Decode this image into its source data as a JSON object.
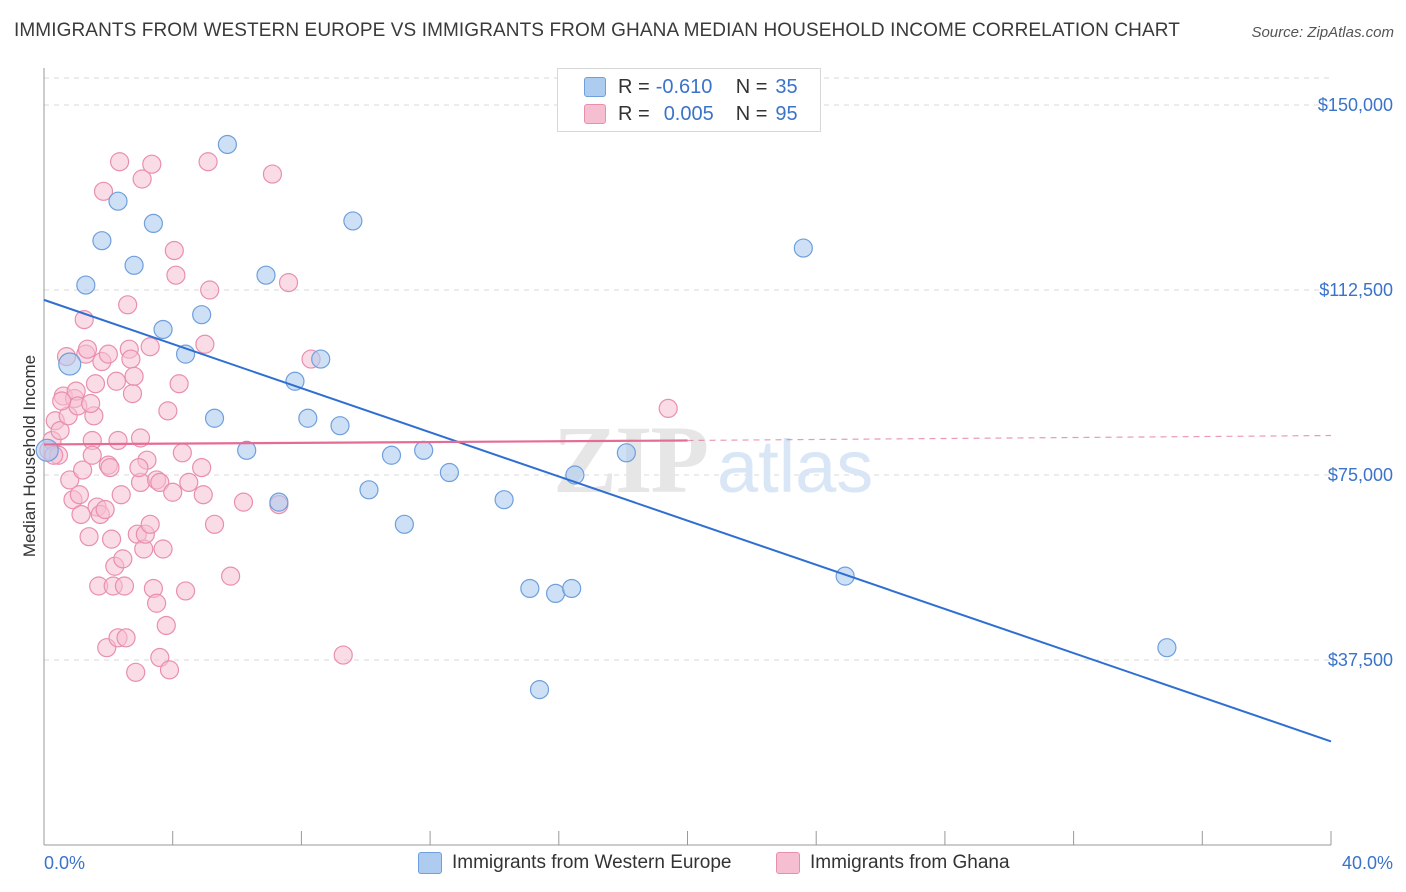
{
  "header": {
    "title": "IMMIGRANTS FROM WESTERN EUROPE VS IMMIGRANTS FROM GHANA MEDIAN HOUSEHOLD INCOME CORRELATION CHART",
    "source": "Source: ZipAtlas.com"
  },
  "legend": {
    "rows": [
      {
        "r_label": "R =",
        "r_value": "-0.610",
        "n_label": "N =",
        "n_value": "35"
      },
      {
        "r_label": "R =",
        "r_value": "0.005",
        "n_label": "N =",
        "n_value": "95"
      }
    ]
  },
  "bottom_legend": {
    "series1": "Immigrants from Western Europe",
    "series2": "Immigrants from Ghana"
  },
  "watermark": "ZIPatlas",
  "colors": {
    "blue_fill": "#aecbf0",
    "blue_stroke": "#6f9fdc",
    "blue_line": "#2f6fd1",
    "pink_fill": "#f6bfd1",
    "pink_stroke": "#e98fae",
    "pink_line": "#e46d96",
    "tick_text": "#3a73c9",
    "grid": "#d9d9d9"
  },
  "chart_data": {
    "type": "scatter",
    "title": "IMMIGRANTS FROM WESTERN EUROPE VS IMMIGRANTS FROM GHANA MEDIAN HOUSEHOLD INCOME CORRELATION CHART",
    "xlabel": "",
    "ylabel": "Median Household Income",
    "xlim": [
      0,
      40
    ],
    "ylim": [
      0,
      157500
    ],
    "x_tick_labels": [
      "0.0%",
      "40.0%"
    ],
    "y_ticks": [
      37500,
      75000,
      112500,
      150000
    ],
    "y_tick_labels": [
      "$37,500",
      "$75,000",
      "$112,500",
      "$150,000"
    ],
    "grid": "horizontal dashed",
    "legend_placement": "top-center",
    "series": [
      {
        "name": "Immigrants from Western Europe",
        "color": "#aecbf0",
        "r": -0.61,
        "n": 35,
        "trend": {
          "x": [
            0,
            40
          ],
          "y": [
            110500,
            21000
          ]
        },
        "points": [
          [
            0.1,
            80000
          ],
          [
            0.8,
            97500
          ],
          [
            1.3,
            113500
          ],
          [
            1.8,
            122500
          ],
          [
            2.3,
            130500
          ],
          [
            2.8,
            117500
          ],
          [
            3.4,
            126000
          ],
          [
            3.7,
            104500
          ],
          [
            4.4,
            99500
          ],
          [
            4.9,
            107500
          ],
          [
            5.3,
            86500
          ],
          [
            5.7,
            142000
          ],
          [
            6.3,
            80000
          ],
          [
            6.9,
            115500
          ],
          [
            7.3,
            69500
          ],
          [
            7.8,
            94000
          ],
          [
            8.2,
            86500
          ],
          [
            8.6,
            98500
          ],
          [
            9.2,
            85000
          ],
          [
            9.6,
            126500
          ],
          [
            10.1,
            72000
          ],
          [
            10.8,
            79000
          ],
          [
            11.2,
            65000
          ],
          [
            11.8,
            80000
          ],
          [
            12.6,
            75500
          ],
          [
            14.3,
            70000
          ],
          [
            15.1,
            52000
          ],
          [
            15.4,
            31500
          ],
          [
            15.9,
            51000
          ],
          [
            16.4,
            52000
          ],
          [
            16.5,
            75000
          ],
          [
            18.1,
            79500
          ],
          [
            23.6,
            121000
          ],
          [
            24.9,
            54500
          ],
          [
            34.9,
            40000
          ]
        ]
      },
      {
        "name": "Immigrants from Ghana",
        "color": "#f6bfd1",
        "r": 0.005,
        "n": 95,
        "trend": {
          "x": [
            0,
            20
          ],
          "y": [
            81200,
            82000
          ]
        },
        "trend_dashed_extension": {
          "x": [
            20,
            40
          ],
          "y": [
            82000,
            83000
          ]
        },
        "points": [
          [
            0.15,
            80000
          ],
          [
            0.25,
            82000
          ],
          [
            0.35,
            86000
          ],
          [
            0.45,
            79000
          ],
          [
            0.5,
            84000
          ],
          [
            0.6,
            91000
          ],
          [
            0.7,
            99000
          ],
          [
            0.75,
            87000
          ],
          [
            0.8,
            74000
          ],
          [
            0.9,
            70000
          ],
          [
            0.95,
            90500
          ],
          [
            1.0,
            92000
          ],
          [
            1.05,
            89000
          ],
          [
            1.1,
            71000
          ],
          [
            1.2,
            76000
          ],
          [
            1.25,
            106500
          ],
          [
            1.3,
            99500
          ],
          [
            1.35,
            100500
          ],
          [
            1.4,
            62500
          ],
          [
            1.5,
            82000
          ],
          [
            1.5,
            79000
          ],
          [
            1.55,
            87000
          ],
          [
            1.6,
            93500
          ],
          [
            1.65,
            68500
          ],
          [
            1.7,
            52500
          ],
          [
            1.75,
            67000
          ],
          [
            1.8,
            98000
          ],
          [
            1.85,
            132500
          ],
          [
            1.9,
            68000
          ],
          [
            1.95,
            40000
          ],
          [
            2.0,
            99500
          ],
          [
            2.0,
            77000
          ],
          [
            2.05,
            76500
          ],
          [
            2.1,
            62000
          ],
          [
            2.15,
            52500
          ],
          [
            2.2,
            56500
          ],
          [
            2.25,
            94000
          ],
          [
            2.3,
            82000
          ],
          [
            2.3,
            42000
          ],
          [
            2.35,
            138500
          ],
          [
            2.4,
            71000
          ],
          [
            2.45,
            58000
          ],
          [
            2.5,
            52500
          ],
          [
            2.55,
            42000
          ],
          [
            2.6,
            109500
          ],
          [
            2.65,
            100500
          ],
          [
            2.7,
            98500
          ],
          [
            2.75,
            91500
          ],
          [
            2.8,
            95000
          ],
          [
            2.85,
            35000
          ],
          [
            2.9,
            63000
          ],
          [
            3.0,
            82500
          ],
          [
            3.0,
            73500
          ],
          [
            3.05,
            135000
          ],
          [
            3.1,
            60000
          ],
          [
            3.15,
            63000
          ],
          [
            3.2,
            78000
          ],
          [
            3.3,
            65000
          ],
          [
            3.3,
            101000
          ],
          [
            3.35,
            138000
          ],
          [
            3.4,
            52000
          ],
          [
            3.5,
            49000
          ],
          [
            3.5,
            74000
          ],
          [
            3.6,
            38000
          ],
          [
            3.6,
            73500
          ],
          [
            3.7,
            60000
          ],
          [
            3.8,
            44500
          ],
          [
            3.85,
            88000
          ],
          [
            3.9,
            35500
          ],
          [
            4.0,
            71500
          ],
          [
            4.05,
            120500
          ],
          [
            4.1,
            115500
          ],
          [
            4.2,
            93500
          ],
          [
            4.3,
            79500
          ],
          [
            4.4,
            51500
          ],
          [
            4.5,
            73500
          ],
          [
            4.9,
            76500
          ],
          [
            4.95,
            71000
          ],
          [
            5.0,
            101500
          ],
          [
            5.1,
            138500
          ],
          [
            5.15,
            112500
          ],
          [
            5.3,
            65000
          ],
          [
            5.8,
            54500
          ],
          [
            6.2,
            69500
          ],
          [
            7.1,
            136000
          ],
          [
            7.3,
            69000
          ],
          [
            7.6,
            114000
          ],
          [
            8.3,
            98500
          ],
          [
            9.3,
            38500
          ],
          [
            19.4,
            88500
          ],
          [
            0.3,
            79000
          ],
          [
            1.45,
            89500
          ],
          [
            2.95,
            76500
          ],
          [
            0.55,
            90000
          ],
          [
            1.15,
            67000
          ]
        ]
      }
    ]
  }
}
